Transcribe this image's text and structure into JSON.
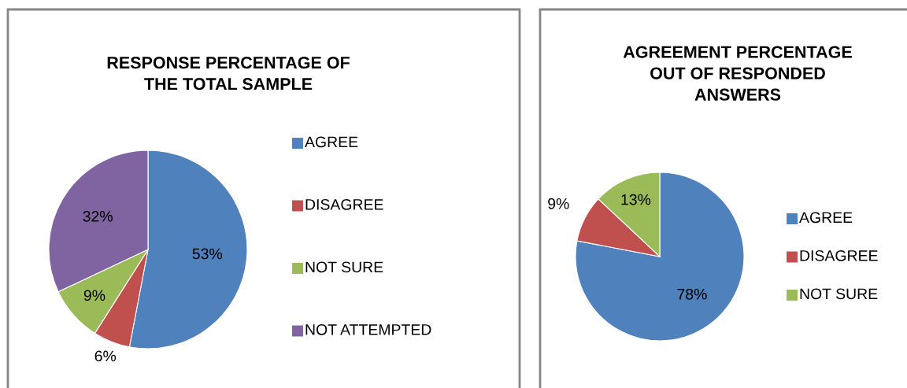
{
  "chart_data": [
    {
      "type": "pie",
      "title": "RESPONSE PERCENTAGE OF\nTHE TOTAL SAMPLE",
      "categories": [
        "AGREE",
        "DISAGREE",
        "NOT SURE",
        "NOT ATTEMPTED"
      ],
      "values": [
        53,
        6,
        9,
        32
      ],
      "colors": [
        "#4f81bd",
        "#c0504d",
        "#9bbb59",
        "#8064a2"
      ],
      "value_labels": [
        "53%",
        "6%",
        "9%",
        "32%"
      ],
      "legend": "right"
    },
    {
      "type": "pie",
      "title": "AGREEMENT PERCENTAGE\nOUT OF RESPONDED\nANSWERS",
      "categories": [
        "AGREE",
        "DISAGREE",
        "NOT SURE"
      ],
      "values": [
        78,
        9,
        13
      ],
      "colors": [
        "#4f81bd",
        "#c0504d",
        "#9bbb59"
      ],
      "value_labels": [
        "78%",
        "9%",
        "13%"
      ],
      "legend": "right"
    }
  ]
}
